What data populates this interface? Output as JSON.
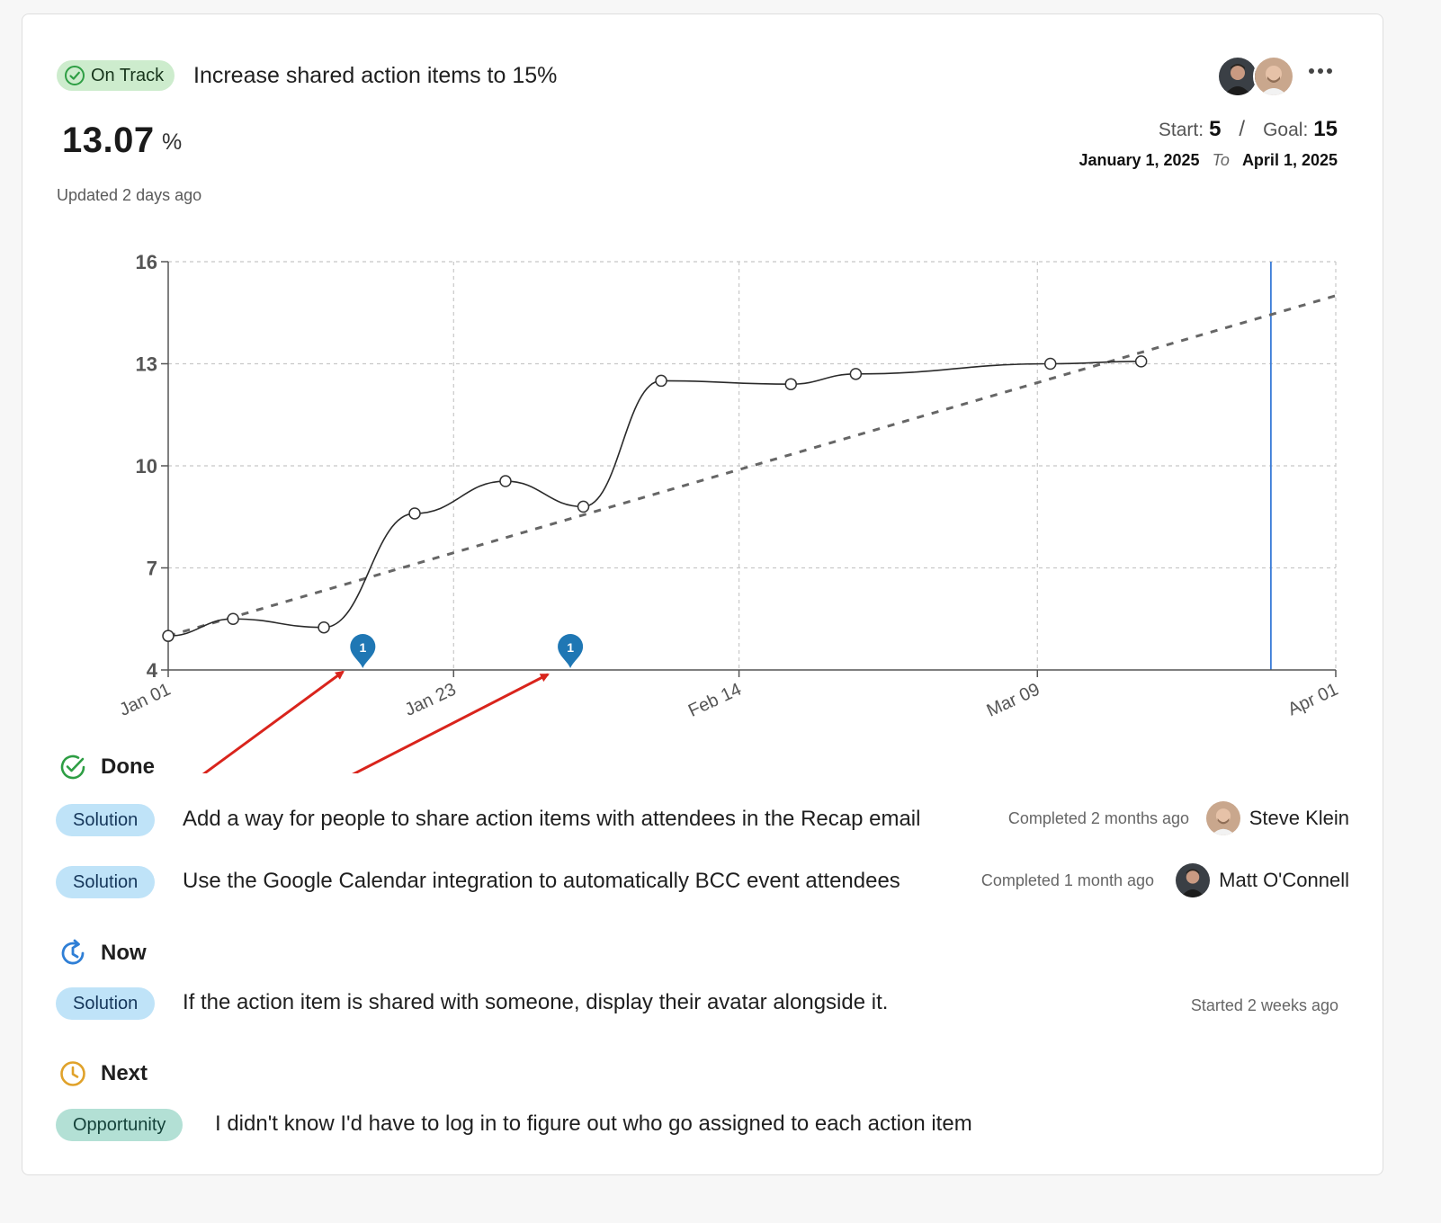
{
  "goal": {
    "status": "On Track",
    "title": "Increase shared action items to 15%",
    "value": "13.07",
    "unit": "%",
    "updated": "Updated 2 days ago",
    "start_label": "Start:",
    "start_value": "5",
    "separator": "/",
    "goal_label": "Goal:",
    "goal_value": "15",
    "start_date": "January 1, 2025",
    "to_label": "To",
    "end_date": "April 1, 2025"
  },
  "colors": {
    "on_track_bg": "#cdeccd",
    "on_track_icon": "#2e9e44",
    "solution_tag": "#bfe3f8",
    "opportunity_tag": "#b3e0d5",
    "marker": "#1f77b4",
    "today_line": "#3b7dd8",
    "annotation_arrow": "#d9241c",
    "now_icon": "#2f7fd6",
    "next_icon": "#e0a22a"
  },
  "chart_data": {
    "type": "line",
    "y_ticks": [
      "16",
      "13",
      "10",
      "7",
      "4"
    ],
    "x_ticks": [
      "Jan 01",
      "Jan 23",
      "Feb 14",
      "Mar 09",
      "Apr 01"
    ],
    "ylim": [
      4,
      16
    ],
    "xlim": [
      "2025-01-01",
      "2025-04-01"
    ],
    "grid": true,
    "series": [
      {
        "type": "line",
        "x": [
          "2025-01-01",
          "2025-01-06",
          "2025-01-13",
          "2025-01-20",
          "2025-01-27",
          "2025-02-02",
          "2025-02-08",
          "2025-02-18",
          "2025-02-23",
          "2025-03-10",
          "2025-03-17"
        ],
        "y": [
          5.0,
          5.5,
          5.25,
          8.6,
          9.55,
          8.8,
          12.5,
          12.4,
          12.7,
          13.0,
          13.07
        ]
      },
      {
        "type": "dashed-trend",
        "x": [
          "2025-01-01",
          "2025-04-01"
        ],
        "y": [
          5.0,
          15.0
        ]
      }
    ],
    "markers": [
      {
        "x": "2025-01-16",
        "label": "1"
      },
      {
        "x": "2025-02-01",
        "label": "1"
      }
    ],
    "today_line_x": "2025-03-27"
  },
  "sections": {
    "done": {
      "label": "Done",
      "items": [
        {
          "tag": "Solution",
          "text": "Add a way for people to share action items with attendees in the Recap email",
          "meta": "Completed 2 months ago",
          "person": "Steve Klein"
        },
        {
          "tag": "Solution",
          "text": "Use the Google Calendar integration to automatically BCC event attendees",
          "meta": "Completed 1 month ago",
          "person": "Matt O'Connell"
        }
      ]
    },
    "now": {
      "label": "Now",
      "items": [
        {
          "tag": "Solution",
          "text": "If the action item is shared with someone, display their avatar alongside it.",
          "meta": "Started 2 weeks ago"
        }
      ]
    },
    "next": {
      "label": "Next",
      "items": [
        {
          "tag": "Opportunity",
          "text": "I didn't know I'd have to log in to figure out who go assigned to each action item"
        }
      ]
    }
  }
}
